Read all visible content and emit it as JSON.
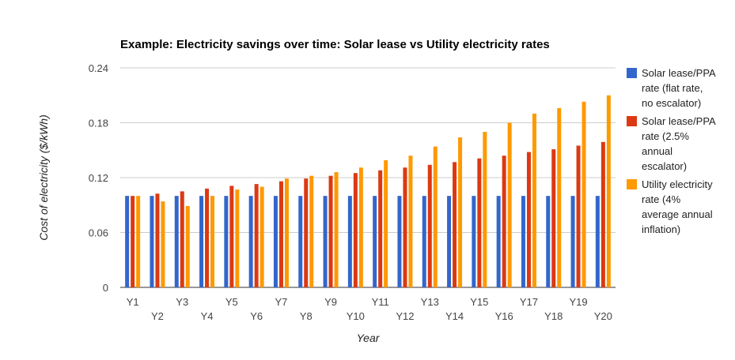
{
  "chart_data": {
    "type": "bar",
    "title": "Example: Electricity savings over time: Solar lease vs Utility electricity rates",
    "xlabel": "Year",
    "ylabel": "Cost of electricity ($/kWh)",
    "ylim": [
      0,
      0.24
    ],
    "yticks": [
      "0",
      "0.06",
      "0.12",
      "0.18",
      "0.24"
    ],
    "grid": true,
    "legend_position": "right",
    "categories": [
      "Y1",
      "Y2",
      "Y3",
      "Y4",
      "Y5",
      "Y6",
      "Y7",
      "Y8",
      "Y9",
      "Y10",
      "Y11",
      "Y12",
      "Y13",
      "Y14",
      "Y15",
      "Y16",
      "Y17",
      "Y18",
      "Y19",
      "Y20"
    ],
    "series": [
      {
        "legend_lines": [
          "Solar lease/PPA",
          "rate (flat rate,",
          "no escalator)"
        ],
        "color": "#3366cc",
        "values": [
          0.1,
          0.1,
          0.1,
          0.1,
          0.1,
          0.1,
          0.1,
          0.1,
          0.1,
          0.1,
          0.1,
          0.1,
          0.1,
          0.1,
          0.1,
          0.1,
          0.1,
          0.1,
          0.1,
          0.1
        ]
      },
      {
        "legend_lines": [
          "Solar lease/PPA",
          "rate (2.5%",
          "annual",
          "escalator)"
        ],
        "color": "#dc3912",
        "values": [
          0.1,
          0.1025,
          0.105,
          0.108,
          0.111,
          0.113,
          0.116,
          0.119,
          0.122,
          0.125,
          0.128,
          0.131,
          0.134,
          0.137,
          0.141,
          0.144,
          0.148,
          0.151,
          0.155,
          0.159
        ]
      },
      {
        "legend_lines": [
          "Utility electricity",
          "rate (4%",
          "average annual",
          "inflation)"
        ],
        "color": "#ff9900",
        "values": [
          0.1,
          0.094,
          0.089,
          0.1,
          0.107,
          0.11,
          0.119,
          0.122,
          0.126,
          0.131,
          0.139,
          0.144,
          0.154,
          0.164,
          0.17,
          0.18,
          0.19,
          0.196,
          0.203,
          0.21
        ]
      }
    ]
  }
}
